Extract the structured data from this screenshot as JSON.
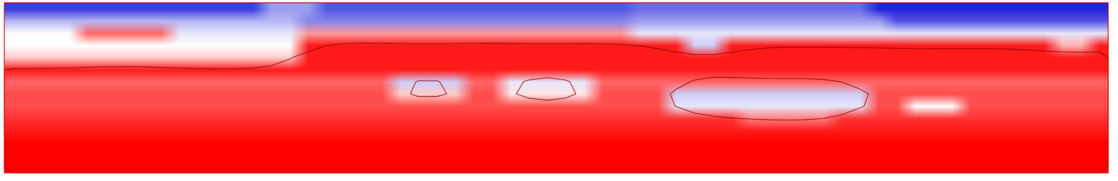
{
  "chart_data": {
    "type": "heatmap",
    "tick_labels": false,
    "zlim": [
      -1,
      1
    ],
    "contour_levels": [
      0.5
    ],
    "values": [
      [
        -0.8,
        -0.8,
        -0.8,
        -0.8,
        -0.8,
        -0.8,
        -0.8,
        -0.8,
        -0.8,
        -0.8,
        -0.8,
        -0.8,
        -0.8,
        -0.8,
        -0.4,
        -0.4,
        -0.4,
        -0.7,
        -0.7,
        -0.7,
        -0.7,
        -0.7,
        -0.7,
        -0.7,
        -0.7,
        -0.7,
        -0.7,
        -0.7,
        -0.7,
        -0.7,
        -0.7,
        -0.7,
        -0.7,
        -0.7,
        -0.6,
        -0.6,
        -0.6,
        -0.6,
        -0.6,
        -0.6,
        -0.6,
        -0.6,
        -0.6,
        -0.6,
        -0.6,
        -0.6,
        -0.6,
        -0.9,
        -0.9,
        -0.9,
        -0.9,
        -0.9,
        -0.9,
        -0.9,
        -0.9,
        -0.9,
        -0.9,
        -0.9,
        -0.9,
        -0.9
      ],
      [
        -0.3,
        -0.3,
        -0.3,
        -0.3,
        -0.3,
        -0.3,
        -0.3,
        -0.3,
        -0.3,
        -0.3,
        -0.3,
        -0.3,
        -0.3,
        -0.3,
        -0.3,
        -0.3,
        -0.5,
        -0.5,
        -0.5,
        -0.5,
        -0.5,
        -0.5,
        -0.5,
        -0.5,
        -0.5,
        -0.5,
        -0.5,
        -0.5,
        -0.5,
        -0.5,
        -0.5,
        -0.5,
        -0.5,
        -0.5,
        -0.4,
        -0.4,
        -0.4,
        -0.4,
        -0.4,
        -0.4,
        -0.4,
        -0.4,
        -0.4,
        -0.4,
        -0.4,
        -0.4,
        -0.4,
        -0.4,
        -0.7,
        -0.7,
        -0.7,
        -0.7,
        -0.7,
        -0.7,
        -0.7,
        -0.7,
        -0.7,
        -0.7,
        -0.7,
        -0.7
      ],
      [
        0,
        0,
        0,
        0,
        0.6,
        0.6,
        0.6,
        0.6,
        0.6,
        -0.1,
        -0.1,
        -0.1,
        -0.1,
        -0.1,
        -0.1,
        -0.1,
        0.4,
        0.4,
        0.4,
        0.4,
        0.4,
        0.4,
        0.4,
        0.4,
        0.4,
        0.4,
        0.4,
        0.4,
        0.4,
        0.4,
        0.4,
        0.4,
        0.4,
        0.4,
        -0.1,
        -0.1,
        -0.1,
        -0.1,
        -0.1,
        -0.1,
        -0.1,
        -0.1,
        -0.1,
        -0.1,
        -0.1,
        -0.1,
        -0.1,
        -0.1,
        -0.1,
        -0.1,
        -0.1,
        -0.1,
        -0.1,
        -0.1,
        -0.1,
        -0.1,
        -0.1,
        -0.1,
        -0.1,
        -0.1
      ],
      [
        0,
        0,
        0,
        0,
        0,
        0,
        0,
        0,
        0,
        0,
        0,
        0,
        0,
        0,
        0,
        0,
        0.9,
        0.9,
        0.9,
        0.9,
        0.9,
        0.9,
        0.9,
        0.9,
        0.9,
        0.9,
        0.9,
        0.9,
        0.9,
        0.9,
        0.9,
        0.9,
        0.9,
        0.9,
        0.9,
        0.9,
        0.9,
        -0.2,
        -0.2,
        0.9,
        0.9,
        0.9,
        0.9,
        0.9,
        0.9,
        0.9,
        0.9,
        0.9,
        0.9,
        0.9,
        0.9,
        0.9,
        0.9,
        0.9,
        0.9,
        0.9,
        0.9,
        0.3,
        0.3,
        0.9
      ],
      [
        0.2,
        0.2,
        0.2,
        0.2,
        0.2,
        0.2,
        0.2,
        0.2,
        0.2,
        0.2,
        0.2,
        0.2,
        0.2,
        0.2,
        0.2,
        0.2,
        0.9,
        0.9,
        0.9,
        0.9,
        0.9,
        0.9,
        0.9,
        0.9,
        0.9,
        0.9,
        0.9,
        0.9,
        0.9,
        0.9,
        0.9,
        0.9,
        0.9,
        0.9,
        0.9,
        0.9,
        0.9,
        0.9,
        0.9,
        0.9,
        0.9,
        0.9,
        0.9,
        0.9,
        0.9,
        0.9,
        0.9,
        0.9,
        0.9,
        0.9,
        0.9,
        0.9,
        0.9,
        0.9,
        0.9,
        0.9,
        0.9,
        0.9,
        0.9,
        0.9
      ],
      [
        0.9,
        0.9,
        0.9,
        0.9,
        0.9,
        0.9,
        0.9,
        0.9,
        0.9,
        0.9,
        0.9,
        0.9,
        0.9,
        0.9,
        0.9,
        0.9,
        0.9,
        0.9,
        0.9,
        0.9,
        0.9,
        0.9,
        0.9,
        0.9,
        0.9,
        0.9,
        0.9,
        0.9,
        0.9,
        0.9,
        0.9,
        0.9,
        0.9,
        0.9,
        0.9,
        0.9,
        0.9,
        0.9,
        0.9,
        0.9,
        0.9,
        0.9,
        0.9,
        0.9,
        0.9,
        0.9,
        0.9,
        0.9,
        0.9,
        0.9,
        0.9,
        0.9,
        0.9,
        0.9,
        0.9,
        0.9,
        0.9,
        0.9,
        0.9,
        0.9
      ],
      [
        0.6,
        0.6,
        0.6,
        0.6,
        0.6,
        0.6,
        0.6,
        0.6,
        0.6,
        0.6,
        0.6,
        0.6,
        0.6,
        0.6,
        0.6,
        0.6,
        0.6,
        0.6,
        0.6,
        0.6,
        0.6,
        -0.2,
        -0.2,
        -0.2,
        -0.2,
        0.6,
        0.6,
        -0.1,
        -0.1,
        -0.1,
        -0.1,
        -0.1,
        0.6,
        0.6,
        0.6,
        0.6,
        0.6,
        0.6,
        0.6,
        0.6,
        0.6,
        0.6,
        0.6,
        0.6,
        0.6,
        0.6,
        0.6,
        0.6,
        0.6,
        0.6,
        0.6,
        0.6,
        0.6,
        0.6,
        0.6,
        0.6,
        0.6,
        0.6,
        0.6,
        0.6
      ],
      [
        0.7,
        0.7,
        0.7,
        0.7,
        0.7,
        0.7,
        0.7,
        0.7,
        0.7,
        0.7,
        0.7,
        0.7,
        0.7,
        0.7,
        0.7,
        0.7,
        0.7,
        0.7,
        0.7,
        0.7,
        0.7,
        0.2,
        0.2,
        0.2,
        0.2,
        0.7,
        0.7,
        0.1,
        0.1,
        0.1,
        0.1,
        0.1,
        0.7,
        0.7,
        0.7,
        0.7,
        -0.2,
        -0.2,
        -0.2,
        -0.2,
        -0.2,
        -0.2,
        -0.2,
        -0.2,
        -0.2,
        -0.2,
        -0.2,
        0.7,
        0.7,
        0.7,
        0.7,
        0.7,
        0.7,
        0.7,
        0.7,
        0.7,
        0.7,
        0.7,
        0.7,
        0.7
      ],
      [
        0.7,
        0.7,
        0.7,
        0.7,
        0.7,
        0.7,
        0.7,
        0.7,
        0.7,
        0.7,
        0.7,
        0.7,
        0.7,
        0.7,
        0.7,
        0.7,
        0.7,
        0.7,
        0.7,
        0.7,
        0.7,
        0.7,
        0.7,
        0.7,
        0.7,
        0.7,
        0.7,
        0.7,
        0.7,
        0.7,
        0.7,
        0.7,
        0.7,
        0.7,
        0.7,
        0.7,
        -0.1,
        -0.1,
        -0.1,
        -0.1,
        -0.1,
        -0.1,
        -0.1,
        -0.1,
        -0.1,
        -0.1,
        -0.1,
        0.7,
        0.7,
        0,
        0,
        0,
        0.7,
        0.7,
        0.7,
        0.7,
        0.7,
        0.7,
        0.7,
        0.7
      ],
      [
        0.8,
        0.8,
        0.8,
        0.8,
        0.8,
        0.8,
        0.8,
        0.8,
        0.8,
        0.8,
        0.8,
        0.8,
        0.8,
        0.8,
        0.8,
        0.8,
        0.8,
        0.8,
        0.8,
        0.8,
        0.8,
        0.8,
        0.8,
        0.8,
        0.8,
        0.8,
        0.8,
        0.8,
        0.8,
        0.8,
        0.8,
        0.8,
        0.8,
        0.8,
        0.8,
        0.8,
        0.8,
        0.8,
        0.8,
        0.8,
        0.5,
        0.5,
        0.5,
        0.5,
        0.5,
        0.8,
        0.8,
        0.8,
        0.8,
        0.8,
        0.8,
        0.8,
        0.8,
        0.8,
        0.8,
        0.8,
        0.8,
        0.8,
        0.8,
        0.8
      ],
      [
        0.9,
        0.9,
        0.9,
        0.9,
        0.9,
        0.9,
        0.9,
        0.9,
        0.9,
        0.9,
        0.9,
        0.9,
        0.9,
        0.9,
        0.9,
        0.9,
        0.9,
        0.9,
        0.9,
        0.9,
        0.9,
        0.9,
        0.9,
        0.9,
        0.9,
        0.9,
        0.9,
        0.9,
        0.9,
        0.9,
        0.9,
        0.9,
        0.9,
        0.9,
        0.9,
        0.9,
        0.9,
        0.9,
        0.9,
        0.9,
        0.9,
        0.9,
        0.9,
        0.9,
        0.9,
        0.9,
        0.9,
        0.9,
        0.9,
        0.9,
        0.9,
        0.9,
        0.9,
        0.9,
        0.9,
        0.9,
        0.9,
        0.9,
        0.9,
        0.9
      ],
      [
        1,
        1,
        1,
        1,
        1,
        1,
        1,
        1,
        1,
        1,
        1,
        1,
        1,
        1,
        1,
        1,
        1,
        1,
        1,
        1,
        1,
        1,
        1,
        1,
        1,
        1,
        1,
        1,
        1,
        1,
        1,
        1,
        1,
        1,
        1,
        1,
        1,
        1,
        1,
        1,
        1,
        1,
        1,
        1,
        1,
        1,
        1,
        1,
        1,
        1,
        1,
        1,
        1,
        1,
        1,
        1,
        1,
        1,
        1,
        1
      ],
      [
        1,
        1,
        1,
        1,
        1,
        1,
        1,
        1,
        1,
        1,
        1,
        1,
        1,
        1,
        1,
        1,
        1,
        1,
        1,
        1,
        1,
        1,
        1,
        1,
        1,
        1,
        1,
        1,
        1,
        1,
        1,
        1,
        1,
        1,
        1,
        1,
        1,
        1,
        1,
        1,
        1,
        1,
        1,
        1,
        1,
        1,
        1,
        1,
        1,
        1,
        1,
        1,
        1,
        1,
        1,
        1,
        1,
        1,
        1,
        1
      ],
      [
        1,
        1,
        1,
        1,
        1,
        1,
        1,
        1,
        1,
        1,
        1,
        1,
        1,
        1,
        1,
        1,
        1,
        1,
        1,
        1,
        1,
        1,
        1,
        1,
        1,
        1,
        1,
        1,
        1,
        1,
        1,
        1,
        1,
        1,
        1,
        1,
        1,
        1,
        1,
        1,
        1,
        1,
        1,
        1,
        1,
        1,
        1,
        1,
        1,
        1,
        1,
        1,
        1,
        1,
        1,
        1,
        1,
        1,
        1,
        1
      ]
    ]
  }
}
